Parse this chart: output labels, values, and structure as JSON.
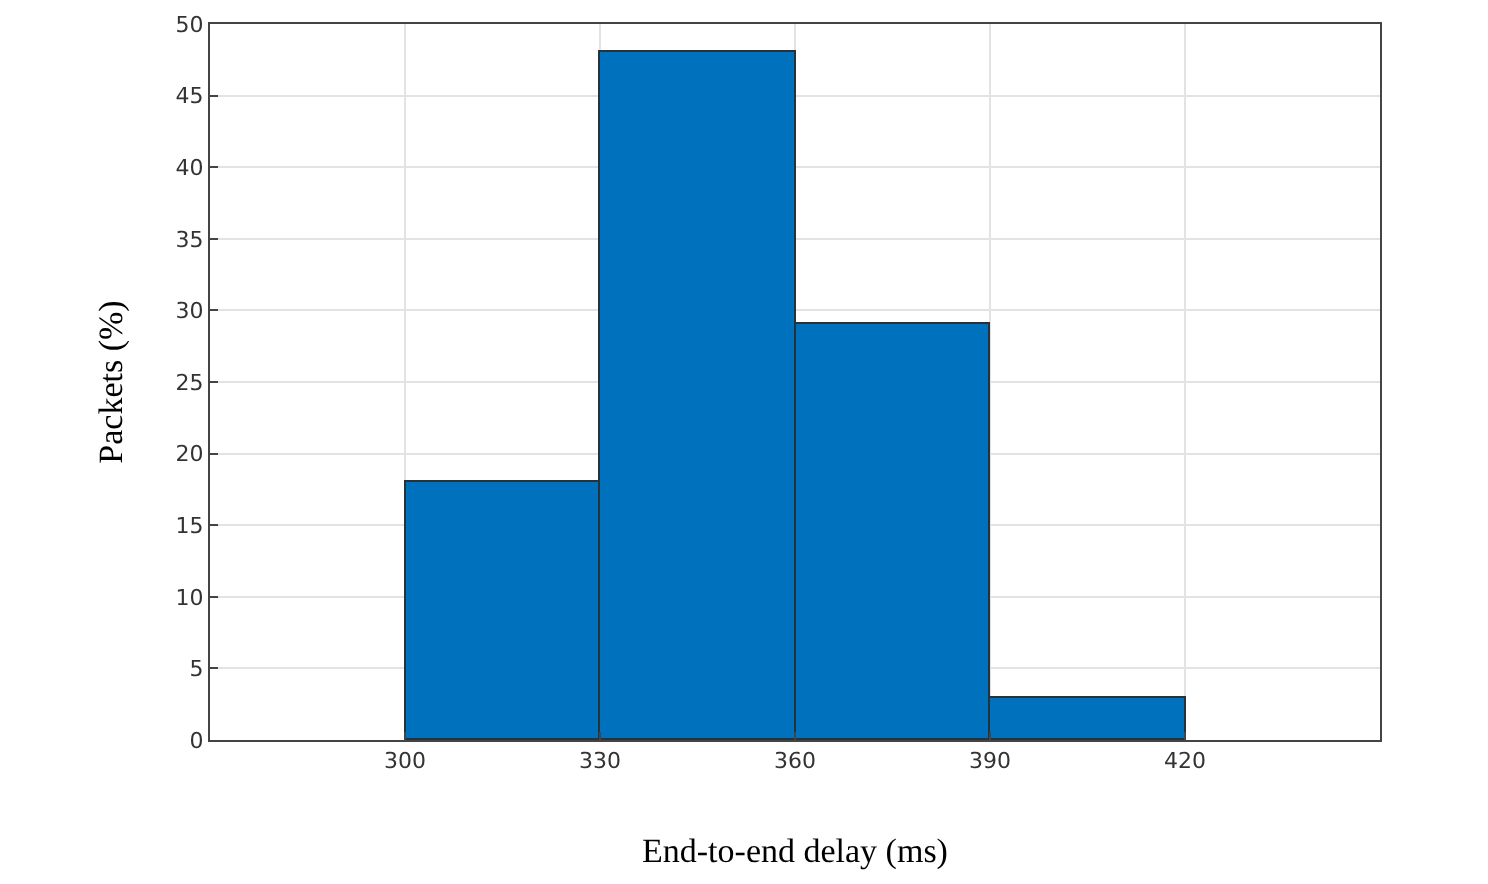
{
  "chart_data": {
    "type": "histogram",
    "xlabel": "End-to-end delay (ms)",
    "ylabel": "Packets (%)",
    "bins": [
      300,
      330,
      360,
      390,
      420,
      450
    ],
    "values": [
      18,
      48,
      29,
      3,
      0
    ],
    "color": "#0072bd",
    "xlim": [
      270,
      450
    ],
    "xticks": [
      300,
      330,
      360,
      390,
      420
    ],
    "ylim": [
      0,
      50
    ],
    "yticks": [
      0,
      5,
      10,
      15,
      20,
      25,
      30,
      35,
      40,
      45,
      50
    ],
    "grid": true,
    "legend": false
  }
}
